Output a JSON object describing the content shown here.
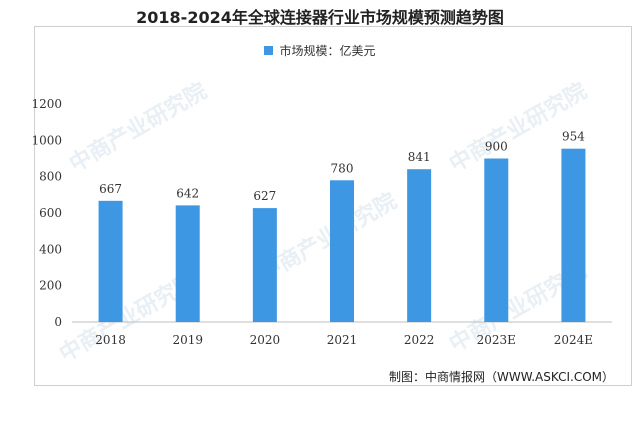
{
  "chart_data": {
    "type": "bar",
    "title": "2018-2024年全球连接器行业市场规模预测趋势图",
    "categories": [
      "2018",
      "2019",
      "2020",
      "2021",
      "2022",
      "2023E",
      "2024E"
    ],
    "series": [
      {
        "name": "市场规模：亿美元",
        "values": [
          667,
          642,
          627,
          780,
          841,
          900,
          954
        ]
      }
    ],
    "ylim": [
      0,
      1200
    ],
    "yticks": [
      "0",
      "200",
      "400",
      "600",
      "800",
      "1000",
      "1200"
    ],
    "bar_color": "#3d97e3",
    "grid": false,
    "legend": "top-center"
  },
  "footer": "制图：中商情报网（WWW.ASKCI.COM）",
  "watermark": "中商产业研究院"
}
